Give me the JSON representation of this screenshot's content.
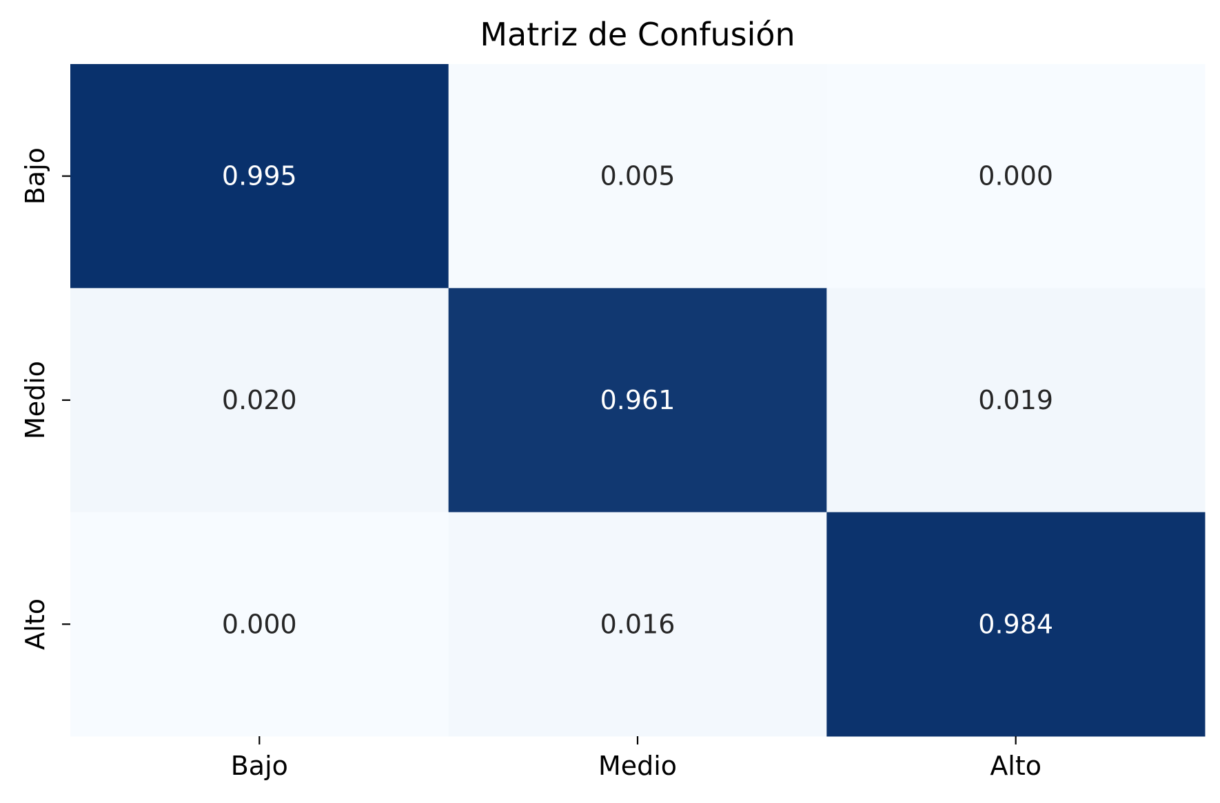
{
  "chart_data": {
    "type": "heatmap",
    "title": "Matriz de Confusión",
    "xlabel": "",
    "ylabel": "",
    "x_categories": [
      "Bajo",
      "Medio",
      "Alto"
    ],
    "y_categories": [
      "Bajo",
      "Medio",
      "Alto"
    ],
    "values": [
      [
        0.995,
        0.005,
        0.0
      ],
      [
        0.02,
        0.961,
        0.019
      ],
      [
        0.0,
        0.016,
        0.984
      ]
    ],
    "value_labels": [
      [
        "0.995",
        "0.005",
        "0.000"
      ],
      [
        "0.020",
        "0.961",
        "0.019"
      ],
      [
        "0.000",
        "0.016",
        "0.984"
      ]
    ],
    "colormap": "Blues",
    "colors": {
      "low": "#f7fbff",
      "high": "#08306b",
      "text_dark": "#262626",
      "text_light": "#ffffff"
    },
    "colorbar": false,
    "grid": false
  }
}
